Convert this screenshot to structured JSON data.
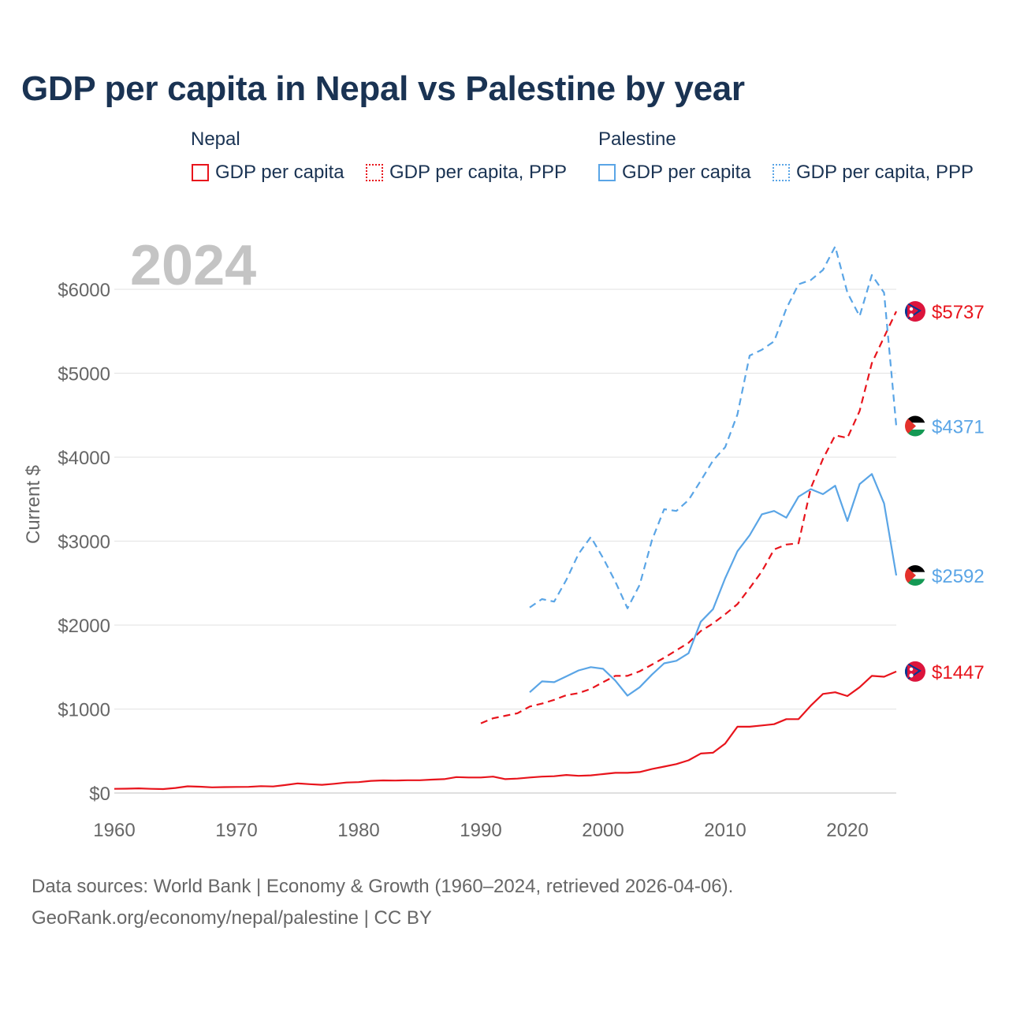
{
  "title": "GDP per capita in Nepal vs Palestine by year",
  "legend": {
    "nepal": {
      "label": "Nepal",
      "gdp": "GDP per capita",
      "ppp": "GDP per capita, PPP"
    },
    "palestine": {
      "label": "Palestine",
      "gdp": "GDP per capita",
      "ppp": "GDP per capita, PPP"
    }
  },
  "colors": {
    "nepal": "#e8141c",
    "palestine": "#5aa5e6",
    "title": "#1a3353",
    "axis_text": "#666666",
    "year_watermark": "#c4c4c4",
    "grid": "#e6e6e6"
  },
  "sources": {
    "line1": "Data sources: World Bank | Economy & Growth (1960–2024, retrieved 2026-04-06).",
    "line2": "GeoRank.org/economy/nepal/palestine | CC BY"
  },
  "chart_data": {
    "type": "line",
    "title": "GDP per capita in Nepal vs Palestine by year",
    "year_label": "2024",
    "xlabel": "",
    "ylabel": "Current $",
    "xlim": [
      1960,
      2024
    ],
    "ylim": [
      0,
      6500
    ],
    "x_ticks": [
      1960,
      1970,
      1980,
      1990,
      2000,
      2010,
      2020
    ],
    "y_ticks": [
      0,
      1000,
      2000,
      3000,
      4000,
      5000,
      6000
    ],
    "y_tick_labels": [
      "$0",
      "$1000",
      "$2000",
      "$3000",
      "$4000",
      "$5000",
      "$6000"
    ],
    "grid": true,
    "series": [
      {
        "name": "Nepal GDP per capita",
        "country": "nepal",
        "style": "solid",
        "end_label": "$1447",
        "points": [
          [
            1960,
            50
          ],
          [
            1961,
            52
          ],
          [
            1962,
            55
          ],
          [
            1963,
            50
          ],
          [
            1964,
            47
          ],
          [
            1965,
            60
          ],
          [
            1966,
            80
          ],
          [
            1967,
            75
          ],
          [
            1968,
            68
          ],
          [
            1969,
            70
          ],
          [
            1970,
            72
          ],
          [
            1971,
            73
          ],
          [
            1972,
            82
          ],
          [
            1973,
            78
          ],
          [
            1974,
            95
          ],
          [
            1975,
            115
          ],
          [
            1976,
            105
          ],
          [
            1977,
            98
          ],
          [
            1978,
            110
          ],
          [
            1979,
            125
          ],
          [
            1980,
            130
          ],
          [
            1981,
            145
          ],
          [
            1982,
            150
          ],
          [
            1983,
            148
          ],
          [
            1984,
            152
          ],
          [
            1985,
            152
          ],
          [
            1986,
            160
          ],
          [
            1987,
            165
          ],
          [
            1988,
            190
          ],
          [
            1989,
            185
          ],
          [
            1990,
            185
          ],
          [
            1991,
            195
          ],
          [
            1992,
            165
          ],
          [
            1993,
            172
          ],
          [
            1994,
            185
          ],
          [
            1995,
            195
          ],
          [
            1996,
            200
          ],
          [
            1997,
            215
          ],
          [
            1998,
            205
          ],
          [
            1999,
            210
          ],
          [
            2000,
            225
          ],
          [
            2001,
            240
          ],
          [
            2002,
            240
          ],
          [
            2003,
            250
          ],
          [
            2004,
            285
          ],
          [
            2005,
            315
          ],
          [
            2006,
            345
          ],
          [
            2007,
            390
          ],
          [
            2008,
            470
          ],
          [
            2009,
            480
          ],
          [
            2010,
            590
          ],
          [
            2011,
            790
          ],
          [
            2012,
            790
          ],
          [
            2013,
            805
          ],
          [
            2014,
            820
          ],
          [
            2015,
            880
          ],
          [
            2016,
            880
          ],
          [
            2017,
            1040
          ],
          [
            2018,
            1180
          ],
          [
            2019,
            1200
          ],
          [
            2020,
            1155
          ],
          [
            2021,
            1260
          ],
          [
            2022,
            1395
          ],
          [
            2023,
            1385
          ],
          [
            2024,
            1447
          ]
        ]
      },
      {
        "name": "Nepal GDP per capita, PPP",
        "country": "nepal",
        "style": "dashed",
        "end_label": "$5737",
        "points": [
          [
            1990,
            830
          ],
          [
            1991,
            890
          ],
          [
            1992,
            920
          ],
          [
            1993,
            950
          ],
          [
            1994,
            1030
          ],
          [
            1995,
            1065
          ],
          [
            1996,
            1110
          ],
          [
            1997,
            1165
          ],
          [
            1998,
            1190
          ],
          [
            1999,
            1240
          ],
          [
            2000,
            1320
          ],
          [
            2001,
            1395
          ],
          [
            2002,
            1395
          ],
          [
            2003,
            1450
          ],
          [
            2004,
            1530
          ],
          [
            2005,
            1610
          ],
          [
            2006,
            1700
          ],
          [
            2007,
            1790
          ],
          [
            2008,
            1930
          ],
          [
            2009,
            2020
          ],
          [
            2010,
            2130
          ],
          [
            2011,
            2250
          ],
          [
            2012,
            2440
          ],
          [
            2013,
            2640
          ],
          [
            2014,
            2900
          ],
          [
            2015,
            2960
          ],
          [
            2016,
            2975
          ],
          [
            2017,
            3630
          ],
          [
            2018,
            3980
          ],
          [
            2019,
            4260
          ],
          [
            2020,
            4230
          ],
          [
            2021,
            4550
          ],
          [
            2022,
            5120
          ],
          [
            2023,
            5430
          ],
          [
            2024,
            5737
          ]
        ]
      },
      {
        "name": "Palestine GDP per capita",
        "country": "palestine",
        "style": "solid",
        "end_label": "$2592",
        "points": [
          [
            1994,
            1200
          ],
          [
            1995,
            1330
          ],
          [
            1996,
            1320
          ],
          [
            1997,
            1390
          ],
          [
            1998,
            1460
          ],
          [
            1999,
            1500
          ],
          [
            2000,
            1480
          ],
          [
            2001,
            1340
          ],
          [
            2002,
            1160
          ],
          [
            2003,
            1260
          ],
          [
            2004,
            1410
          ],
          [
            2005,
            1545
          ],
          [
            2006,
            1575
          ],
          [
            2007,
            1665
          ],
          [
            2008,
            2040
          ],
          [
            2009,
            2190
          ],
          [
            2010,
            2560
          ],
          [
            2011,
            2880
          ],
          [
            2012,
            3070
          ],
          [
            2013,
            3320
          ],
          [
            2014,
            3360
          ],
          [
            2015,
            3280
          ],
          [
            2016,
            3530
          ],
          [
            2017,
            3620
          ],
          [
            2018,
            3560
          ],
          [
            2019,
            3660
          ],
          [
            2020,
            3240
          ],
          [
            2021,
            3680
          ],
          [
            2022,
            3800
          ],
          [
            2023,
            3450
          ],
          [
            2024,
            2592
          ]
        ]
      },
      {
        "name": "Palestine GDP per capita, PPP",
        "country": "palestine",
        "style": "dashed",
        "end_label": "$4371",
        "points": [
          [
            1994,
            2210
          ],
          [
            1995,
            2310
          ],
          [
            1996,
            2280
          ],
          [
            1997,
            2540
          ],
          [
            1998,
            2850
          ],
          [
            1999,
            3050
          ],
          [
            2000,
            2800
          ],
          [
            2001,
            2520
          ],
          [
            2002,
            2200
          ],
          [
            2003,
            2480
          ],
          [
            2004,
            3010
          ],
          [
            2005,
            3380
          ],
          [
            2006,
            3360
          ],
          [
            2007,
            3490
          ],
          [
            2008,
            3720
          ],
          [
            2009,
            3960
          ],
          [
            2010,
            4120
          ],
          [
            2011,
            4510
          ],
          [
            2012,
            5210
          ],
          [
            2013,
            5280
          ],
          [
            2014,
            5380
          ],
          [
            2015,
            5770
          ],
          [
            2016,
            6060
          ],
          [
            2017,
            6110
          ],
          [
            2018,
            6230
          ],
          [
            2019,
            6510
          ],
          [
            2020,
            5960
          ],
          [
            2021,
            5680
          ],
          [
            2022,
            6170
          ],
          [
            2023,
            5960
          ],
          [
            2024,
            4371
          ]
        ]
      }
    ]
  }
}
